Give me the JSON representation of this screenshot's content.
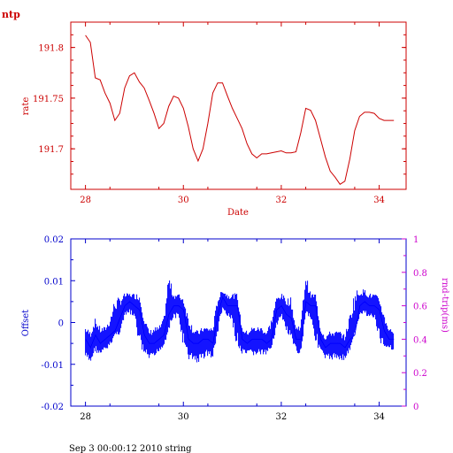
{
  "top_label": "ntp",
  "footer": "Sep  3 00:00:12 2010 string",
  "colors": {
    "rate": "#cc0000",
    "offset": "#0000ff",
    "offset_axis": "#0000cc",
    "rtt_axis": "#cc00cc"
  },
  "chart_data": [
    {
      "type": "line",
      "xlabel": "Date",
      "ylabel": "rate",
      "xlim": [
        27.7,
        34.55
      ],
      "ylim": [
        191.66,
        191.825
      ],
      "xticks": [
        "28",
        "30",
        "32",
        "34"
      ],
      "yticks": [
        "191.7",
        "191.75",
        "191.8"
      ],
      "series": [
        {
          "x": [
            28.0,
            28.1,
            28.2,
            28.3,
            28.4,
            28.5,
            28.6,
            28.7,
            28.8,
            28.9,
            29.0,
            29.1,
            29.2,
            29.3,
            29.4,
            29.5,
            29.6,
            29.7,
            29.8,
            29.9,
            30.0,
            30.1,
            30.2,
            30.3,
            30.4,
            30.5,
            30.6,
            30.7,
            30.8,
            30.9,
            31.0,
            31.1,
            31.2,
            31.3,
            31.4,
            31.5,
            31.6,
            31.7,
            31.8,
            31.9,
            32.0,
            32.1,
            32.2,
            32.3,
            32.4,
            32.5,
            32.6,
            32.7,
            32.8,
            32.9,
            33.0,
            33.1,
            33.2,
            33.3,
            33.4,
            33.5,
            33.6,
            33.7,
            33.8,
            33.9,
            34.0,
            34.1,
            34.2,
            34.3
          ],
          "y": [
            191.812,
            191.805,
            191.77,
            191.768,
            191.755,
            191.745,
            191.728,
            191.735,
            191.76,
            191.772,
            191.775,
            191.766,
            191.76,
            191.748,
            191.735,
            191.72,
            191.725,
            191.742,
            191.752,
            191.75,
            191.74,
            191.722,
            191.7,
            191.688,
            191.7,
            191.725,
            191.755,
            191.765,
            191.765,
            191.752,
            191.74,
            191.73,
            191.72,
            191.705,
            191.695,
            191.691,
            191.695,
            191.695,
            191.696,
            191.697,
            191.698,
            191.696,
            191.696,
            191.697,
            191.716,
            191.74,
            191.738,
            191.728,
            191.71,
            191.692,
            191.678,
            191.672,
            191.665,
            191.668,
            191.69,
            191.718,
            191.732,
            191.736,
            191.736,
            191.735,
            191.73,
            191.728,
            191.728,
            191.728
          ]
        }
      ]
    },
    {
      "type": "line",
      "xlabel": "",
      "ylabel": "Offset",
      "y2label": "rnd-trip(ms)",
      "xlim": [
        27.7,
        34.55
      ],
      "ylim": [
        -0.02,
        0.02
      ],
      "y2lim": [
        0,
        1
      ],
      "xticks": [
        "28",
        "30",
        "32",
        "34"
      ],
      "yticks": [
        "-0.02",
        "-0.01",
        "0",
        "0.01",
        "0.02"
      ],
      "y2ticks": [
        "0",
        "0.2",
        "0.4",
        "0.6",
        "0.8",
        "1"
      ],
      "series": [
        {
          "x": [
            28.0,
            28.1,
            28.2,
            28.3,
            28.4,
            28.5,
            28.6,
            28.7,
            28.8,
            28.9,
            29.0,
            29.1,
            29.2,
            29.3,
            29.4,
            29.5,
            29.6,
            29.7,
            29.8,
            29.9,
            30.0,
            30.1,
            30.2,
            30.3,
            30.4,
            30.5,
            30.6,
            30.7,
            30.8,
            30.9,
            31.0,
            31.1,
            31.2,
            31.3,
            31.4,
            31.5,
            31.6,
            31.7,
            31.8,
            31.9,
            32.0,
            32.1,
            32.2,
            32.3,
            32.4,
            32.5,
            32.6,
            32.7,
            32.8,
            32.9,
            33.0,
            33.1,
            33.2,
            33.3,
            33.4,
            33.5,
            33.6,
            33.7,
            33.8,
            33.9,
            34.0,
            34.1,
            34.2,
            34.3
          ],
          "y": [
            -0.004,
            -0.006,
            -0.003,
            -0.005,
            -0.004,
            -0.003,
            -0.002,
            0.001,
            0.004,
            0.005,
            0.004,
            0.003,
            -0.003,
            -0.005,
            -0.005,
            -0.004,
            -0.003,
            0.002,
            0.004,
            0.004,
            0.003,
            -0.004,
            -0.005,
            -0.005,
            -0.004,
            -0.004,
            -0.005,
            0.002,
            0.006,
            0.004,
            0.004,
            0.004,
            -0.004,
            -0.005,
            -0.004,
            -0.004,
            -0.004,
            -0.005,
            -0.004,
            0.003,
            0.004,
            0.002,
            0.001,
            -0.004,
            -0.004,
            0.005,
            0.004,
            0.004,
            -0.004,
            -0.006,
            -0.005,
            -0.005,
            -0.005,
            -0.006,
            -0.004,
            -0.003,
            0.004,
            0.005,
            0.004,
            0.004,
            0.003,
            -0.002,
            -0.004,
            -0.004
          ],
          "min": [
            -0.009,
            -0.01,
            -0.007,
            -0.008,
            -0.007,
            -0.006,
            -0.003,
            -0.003,
            0.001,
            0.002,
            0.001,
            -0.006,
            -0.008,
            -0.009,
            -0.009,
            -0.007,
            -0.006,
            -0.002,
            0.001,
            0.001,
            -0.006,
            -0.009,
            -0.009,
            -0.01,
            -0.009,
            -0.008,
            -0.009,
            -0.003,
            0.003,
            0.001,
            0.0,
            -0.007,
            -0.008,
            -0.008,
            -0.008,
            -0.008,
            -0.008,
            -0.008,
            -0.006,
            -0.002,
            0.001,
            -0.002,
            -0.005,
            -0.007,
            -0.008,
            0.002,
            0.001,
            -0.005,
            -0.007,
            -0.009,
            -0.009,
            -0.009,
            -0.009,
            -0.009,
            -0.007,
            -0.002,
            0.001,
            0.002,
            0.001,
            0.001,
            -0.005,
            -0.006,
            -0.006,
            -0.007
          ],
          "max": [
            -0.001,
            -0.002,
            0.001,
            -0.001,
            -0.001,
            0.001,
            0.006,
            0.006,
            0.007,
            0.007,
            0.007,
            0.007,
            0.002,
            -0.002,
            -0.001,
            -0.001,
            0.001,
            0.012,
            0.007,
            0.007,
            0.006,
            0.002,
            -0.001,
            -0.002,
            -0.001,
            -0.001,
            -0.001,
            0.006,
            0.008,
            0.007,
            0.007,
            0.007,
            -0.001,
            -0.002,
            -0.001,
            -0.001,
            -0.001,
            -0.002,
            0.001,
            0.006,
            0.007,
            0.006,
            0.006,
            -0.001,
            0.0,
            0.012,
            0.007,
            0.007,
            -0.001,
            -0.003,
            -0.002,
            -0.002,
            -0.002,
            -0.003,
            0.002,
            0.008,
            0.008,
            0.008,
            0.007,
            0.007,
            0.006,
            0.002,
            -0.001,
            -0.002
          ]
        }
      ]
    }
  ]
}
